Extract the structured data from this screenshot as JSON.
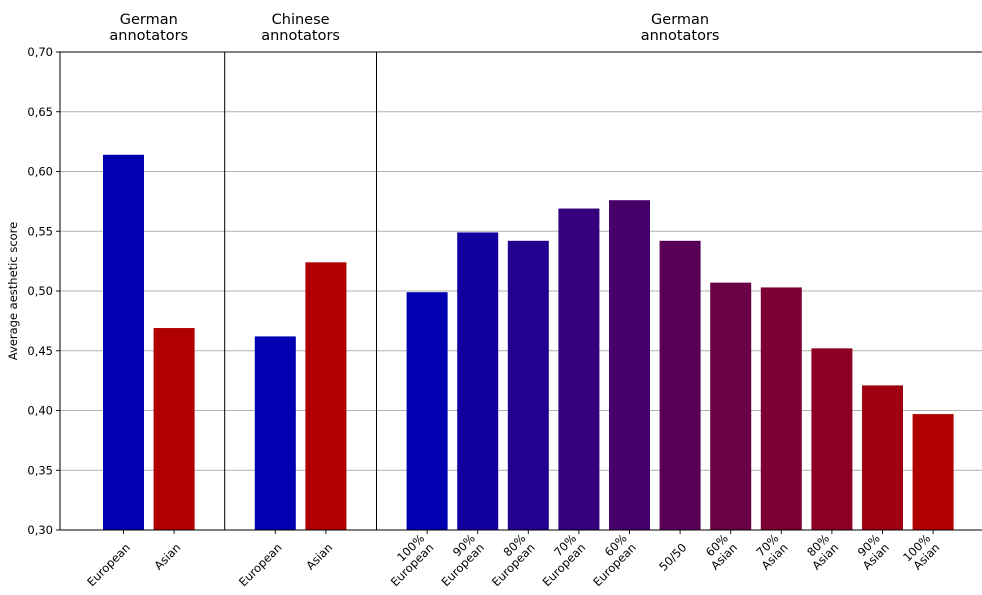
{
  "chart_data": {
    "type": "bar",
    "ylabel": "Average aesthetic score",
    "ylim": [
      0.3,
      0.7
    ],
    "yticks": [
      "0,30",
      "0,35",
      "0,40",
      "0,45",
      "0,50",
      "0,55",
      "0,60",
      "0,65",
      "0,70"
    ],
    "grid": "horizontal",
    "groups": [
      {
        "title": [
          "German",
          "annotators"
        ],
        "bars": [
          {
            "label": [
              "European"
            ],
            "value": 0.614,
            "color": "#0000b0"
          },
          {
            "label": [
              "Asian"
            ],
            "value": 0.469,
            "color": "#b00000"
          }
        ]
      },
      {
        "title": [
          "Chinese",
          "annotators"
        ],
        "bars": [
          {
            "label": [
              "European"
            ],
            "value": 0.462,
            "color": "#0000b0"
          },
          {
            "label": [
              "Asian"
            ],
            "value": 0.524,
            "color": "#b00000"
          }
        ]
      },
      {
        "title": [
          "German",
          "annotators"
        ],
        "bars": [
          {
            "label": [
              "100%",
              "European"
            ],
            "value": 0.499,
            "color": "#0000b0"
          },
          {
            "label": [
              "90%",
              "European"
            ],
            "value": 0.549,
            "color": "#11009f"
          },
          {
            "label": [
              "80%",
              "European"
            ],
            "value": 0.542,
            "color": "#23008d"
          },
          {
            "label": [
              "70%",
              "European"
            ],
            "value": 0.569,
            "color": "#34007c"
          },
          {
            "label": [
              "60%",
              "European"
            ],
            "value": 0.576,
            "color": "#46006a"
          },
          {
            "label": [
              "50/50"
            ],
            "value": 0.542,
            "color": "#580058"
          },
          {
            "label": [
              "60%",
              "Asian"
            ],
            "value": 0.507,
            "color": "#6a0046"
          },
          {
            "label": [
              "70%",
              "Asian"
            ],
            "value": 0.503,
            "color": "#7c0034"
          },
          {
            "label": [
              "80%",
              "Asian"
            ],
            "value": 0.452,
            "color": "#8d0023"
          },
          {
            "label": [
              "90%",
              "Asian"
            ],
            "value": 0.421,
            "color": "#9f0011"
          },
          {
            "label": [
              "100%",
              "Asian"
            ],
            "value": 0.397,
            "color": "#b00000"
          }
        ]
      }
    ]
  }
}
